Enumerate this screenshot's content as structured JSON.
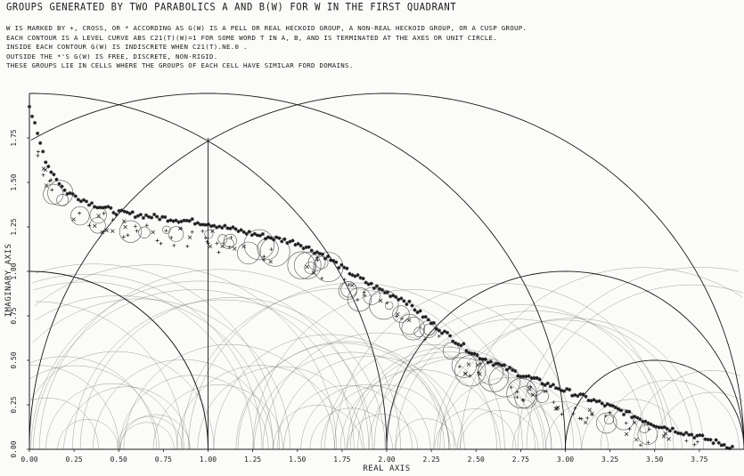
{
  "title": "GROUPS GENERATED BY TWO PARABOLICS A AND B(W) FOR W IN THE FIRST QUADRANT",
  "description": [
    "W IS MARKED BY +, CROSS, OR * ACCORDING AS G(W) IS A PELL OR REAL HECKOID GROUP, A NON-REAL HECKOID GROUP, OR A CUSP GROUP.",
    "EACH CONTOUR IS A LEVEL CURVE ABS C21(T)(W)=1 FOR SOME WORD T IN A, B, AND IS TERMINATED AT THE AXES OR UNIT CIRCLE.",
    "INSIDE EACH CONTOUR G(W) IS INDISCRETE WHEN C21(T).NE.0 .",
    "OUTSIDE THE *'S G(W) IS FREE, DISCRETE, NON-RIGID.",
    "THESE GROUPS LIE IN CELLS WHERE THE GROUPS OF EACH CELL HAVE SIMILAR FORD DOMAINS."
  ],
  "chart_data": {
    "type": "scatter",
    "xlabel": "REAL AXIS",
    "ylabel": "IMAGINARY AXIS",
    "xlim": [
      0,
      4
    ],
    "ylim": [
      0,
      2
    ],
    "xticks": [
      "0.00",
      "0.25",
      "0.50",
      "0.75",
      "1.00",
      "1.25",
      "1.50",
      "1.75",
      "2.00",
      "2.25",
      "2.50",
      "2.75",
      "3.00",
      "3.25",
      "3.50",
      "3.75"
    ],
    "yticks": [
      "0.00",
      "0.25",
      "0.50",
      "0.75",
      "1.00",
      "1.25",
      "1.50",
      "1.75"
    ],
    "grid": false,
    "marker_legend": {
      "plus": "PELL OR REAL HECKOID GROUP",
      "cross": "NON-REAL HECKOID GROUP",
      "star": "CUSP GROUP"
    },
    "cusp_boundary": [
      [
        0.0,
        1.93
      ],
      [
        0.05,
        1.75
      ],
      [
        0.1,
        1.6
      ],
      [
        0.2,
        1.45
      ],
      [
        0.35,
        1.38
      ],
      [
        0.5,
        1.33
      ],
      [
        0.75,
        1.3
      ],
      [
        1.0,
        1.27
      ],
      [
        1.25,
        1.21
      ],
      [
        1.5,
        1.16
      ],
      [
        1.65,
        1.09
      ],
      [
        1.75,
        1.02
      ],
      [
        1.9,
        0.93
      ],
      [
        2.0,
        0.88
      ],
      [
        2.1,
        0.84
      ],
      [
        2.25,
        0.71
      ],
      [
        2.4,
        0.6
      ],
      [
        2.5,
        0.53
      ],
      [
        2.75,
        0.42
      ],
      [
        3.0,
        0.33
      ],
      [
        3.25,
        0.24
      ],
      [
        3.5,
        0.14
      ],
      [
        3.75,
        0.07
      ],
      [
        3.97,
        0.0
      ]
    ],
    "unit_circle": {
      "center": [
        0,
        0
      ],
      "radius": 1
    },
    "outer_arcs": [
      {
        "center": [
          0,
          0
        ],
        "radius": 2
      },
      {
        "center": [
          1,
          0
        ],
        "radius": 2
      },
      {
        "center": [
          2,
          0
        ],
        "radius": 2
      },
      {
        "center": [
          3,
          0
        ],
        "radius": 1
      },
      {
        "center": [
          3.5,
          0
        ],
        "radius": 0.5
      }
    ],
    "verticals": [
      {
        "x": 1.0,
        "y_from": 0,
        "y_to": 1.75
      }
    ]
  },
  "colors": {
    "ink": "#1a1a1a",
    "paper": "#fbfbf9",
    "contour": "#555555"
  }
}
